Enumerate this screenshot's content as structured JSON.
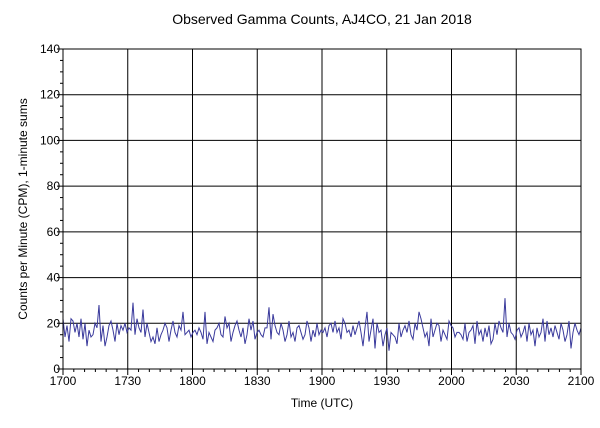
{
  "chart_data": {
    "type": "line",
    "title": "Observed Gamma Counts, AJ4CO, 21 Jan 2018",
    "xlabel": "Time (UTC)",
    "ylabel": "Counts per Minute (CPM), 1-minute sums",
    "xlim": [
      0,
      240
    ],
    "ylim": [
      0,
      140
    ],
    "x_ticks": [
      {
        "value": 0,
        "label": "1700"
      },
      {
        "value": 30,
        "label": "1730"
      },
      {
        "value": 60,
        "label": "1800"
      },
      {
        "value": 90,
        "label": "1830"
      },
      {
        "value": 120,
        "label": "1900"
      },
      {
        "value": 150,
        "label": "1930"
      },
      {
        "value": 180,
        "label": "2000"
      },
      {
        "value": 210,
        "label": "2030"
      },
      {
        "value": 240,
        "label": "2100"
      }
    ],
    "y_ticks": [
      0,
      20,
      40,
      60,
      80,
      100,
      120,
      140
    ],
    "grid": true,
    "line_color": "#3a3a9c",
    "series": [
      {
        "name": "",
        "values": [
          22,
          14,
          19,
          12,
          22,
          21,
          16,
          20,
          14,
          22,
          13,
          20,
          10,
          17,
          14,
          15,
          20,
          18,
          28,
          12,
          19,
          10,
          14,
          19,
          21,
          17,
          12,
          20,
          15,
          19,
          17,
          20,
          16,
          18,
          17,
          29,
          15,
          22,
          18,
          16,
          26,
          14,
          20,
          16,
          12,
          14,
          11,
          18,
          12,
          15,
          17,
          20,
          18,
          12,
          17,
          21,
          16,
          14,
          19,
          17,
          25,
          15,
          16,
          17,
          14,
          16,
          17,
          15,
          18,
          16,
          13,
          25,
          11,
          16,
          14,
          12,
          17,
          18,
          20,
          15,
          14,
          23,
          18,
          20,
          12,
          16,
          19,
          21,
          17,
          14,
          18,
          11,
          15,
          22,
          17,
          21,
          13,
          16,
          17,
          15,
          14,
          18,
          18,
          27,
          13,
          24,
          19,
          16,
          15,
          20,
          17,
          12,
          15,
          21,
          14,
          16,
          12,
          18,
          19,
          16,
          13,
          15,
          21,
          18,
          12,
          17,
          14,
          20,
          15,
          17,
          16,
          18,
          14,
          19,
          20,
          16,
          21,
          16,
          18,
          13,
          22,
          20,
          16,
          17,
          14,
          19,
          15,
          18,
          21,
          16,
          10,
          18,
          25,
          12,
          17,
          22,
          9,
          20,
          16,
          17,
          10,
          15,
          18,
          8,
          16,
          15,
          14,
          11,
          20,
          14,
          17,
          19,
          16,
          21,
          15,
          13,
          20,
          17,
          25,
          22,
          18,
          14,
          16,
          10,
          22,
          14,
          17,
          20,
          19,
          12,
          17,
          15,
          13,
          21,
          19,
          18,
          14,
          16,
          16,
          15,
          13,
          20,
          12,
          16,
          17,
          19,
          11,
          21,
          15,
          17,
          12,
          18,
          14,
          19,
          11,
          13,
          20,
          15,
          21,
          18,
          16,
          31,
          14,
          20,
          16,
          15,
          13,
          17,
          18,
          14,
          16,
          19,
          12,
          20,
          15,
          17,
          10,
          18,
          14,
          16,
          22,
          12,
          21,
          15,
          18,
          14,
          19,
          16,
          13,
          20,
          17,
          12,
          15,
          21,
          9,
          16,
          20,
          17,
          15,
          18
        ]
      }
    ]
  }
}
